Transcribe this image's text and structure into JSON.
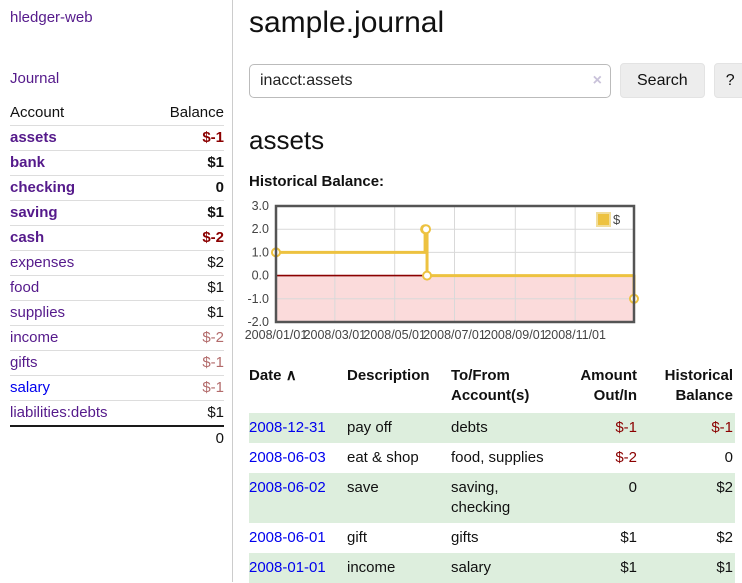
{
  "colors": {
    "link_purple": "#551a8b",
    "link_blue": "#0000ee",
    "negative_dark_red": "#8b0000",
    "negative_muted_red": "#b36b6b",
    "row_stripe_green": "#ddeedd",
    "chart_series_gold": "#edc240",
    "chart_negative_region_pink": "#fbdbdb",
    "chart_zero_line_red": "#8b0000",
    "chart_border_gray": "#545454"
  },
  "sidebar": {
    "app_title": "hledger-web",
    "nav": {
      "journal": "Journal"
    },
    "accounts_table": {
      "headers": {
        "account": "Account",
        "balance": "Balance"
      },
      "rows": [
        {
          "account": "assets",
          "balance": "$-1",
          "depth": 1,
          "bold": true,
          "negative": true,
          "blue": false
        },
        {
          "account": "bank",
          "balance": "$1",
          "depth": 2,
          "bold": true,
          "negative": false,
          "blue": false
        },
        {
          "account": "checking",
          "balance": "0",
          "depth": 3,
          "bold": true,
          "negative": false,
          "blue": false
        },
        {
          "account": "saving",
          "balance": "$1",
          "depth": 3,
          "bold": true,
          "negative": false,
          "blue": false
        },
        {
          "account": "cash",
          "balance": "$-2",
          "depth": 2,
          "bold": true,
          "negative": true,
          "blue": false
        },
        {
          "account": "expenses",
          "balance": "$2",
          "depth": 1,
          "bold": false,
          "negative": false,
          "blue": false
        },
        {
          "account": "food",
          "balance": "$1",
          "depth": 2,
          "bold": false,
          "negative": false,
          "blue": false
        },
        {
          "account": "supplies",
          "balance": "$1",
          "depth": 2,
          "bold": false,
          "negative": false,
          "blue": false
        },
        {
          "account": "income",
          "balance": "$-2",
          "depth": 1,
          "bold": false,
          "negative": true,
          "blue": false
        },
        {
          "account": "gifts",
          "balance": "$-1",
          "depth": 2,
          "bold": false,
          "negative": true,
          "blue": false
        },
        {
          "account": "salary",
          "balance": "$-1",
          "depth": 2,
          "bold": false,
          "negative": true,
          "blue": true
        },
        {
          "account": "liabilities:debts",
          "balance": "$1",
          "depth": 1,
          "bold": false,
          "negative": false,
          "blue": false
        }
      ],
      "total": "0"
    }
  },
  "main": {
    "title": "sample.journal",
    "search": {
      "value": "inacct:assets",
      "clear_icon": "×",
      "search_button": "Search",
      "help_button": "?"
    },
    "account_heading": "assets",
    "chart_title": "Historical Balance:"
  },
  "chart_data": {
    "type": "line",
    "style": "step",
    "title": "Historical Balance",
    "legend": {
      "label": "$",
      "position": "top-right"
    },
    "grid": true,
    "ylim": [
      -2,
      3
    ],
    "yticks": [
      {
        "label": "3.0",
        "value": 3
      },
      {
        "label": "2.0",
        "value": 2
      },
      {
        "label": "1.0",
        "value": 1
      },
      {
        "label": "0.0",
        "value": 0
      },
      {
        "label": "-1.0",
        "value": -1
      },
      {
        "label": "-2.0",
        "value": -2
      }
    ],
    "xlim_days": [
      0,
      365
    ],
    "xticks": [
      {
        "label": "2008/01/01",
        "day": 0
      },
      {
        "label": "2008/03/01",
        "day": 60
      },
      {
        "label": "2008/05/01",
        "day": 121
      },
      {
        "label": "2008/07/01",
        "day": 182
      },
      {
        "label": "2008/09/01",
        "day": 244
      },
      {
        "label": "2008/11/01",
        "day": 305
      }
    ],
    "series": [
      {
        "name": "$",
        "color": "#edc240",
        "points": [
          {
            "date": "2008-01-01",
            "day": 0,
            "value": 1
          },
          {
            "date": "2008-06-01",
            "day": 152,
            "value": 2
          },
          {
            "date": "2008-06-02",
            "day": 153,
            "value": 2
          },
          {
            "date": "2008-06-03",
            "day": 154,
            "value": 0
          },
          {
            "date": "2008-12-31",
            "day": 365,
            "value": -1
          }
        ]
      }
    ],
    "negative_region_fill": "#fbdbdb",
    "zero_line_color": "#8b0000",
    "grid_color": "#d9d9d9",
    "border_color": "#545454"
  },
  "register": {
    "headers": [
      "Date",
      "Description",
      "To/From Account(s)",
      "Amount Out/In",
      "Historical Balance"
    ],
    "sort_indicator": "∧",
    "rows": [
      {
        "date": "2008-12-31",
        "description": "pay off",
        "accounts": "debts",
        "amount": "$-1",
        "amount_negative": true,
        "balance": "$-1",
        "balance_negative": true
      },
      {
        "date": "2008-06-03",
        "description": "eat & shop",
        "accounts": "food, supplies",
        "amount": "$-2",
        "amount_negative": true,
        "balance": "0",
        "balance_negative": false
      },
      {
        "date": "2008-06-02",
        "description": "save",
        "accounts": "saving, checking",
        "amount": "0",
        "amount_negative": false,
        "balance": "$2",
        "balance_negative": false
      },
      {
        "date": "2008-06-01",
        "description": "gift",
        "accounts": "gifts",
        "amount": "$1",
        "amount_negative": false,
        "balance": "$2",
        "balance_negative": false
      },
      {
        "date": "2008-01-01",
        "description": "income",
        "accounts": "salary",
        "amount": "$1",
        "amount_negative": false,
        "balance": "$1",
        "balance_negative": false
      }
    ]
  }
}
